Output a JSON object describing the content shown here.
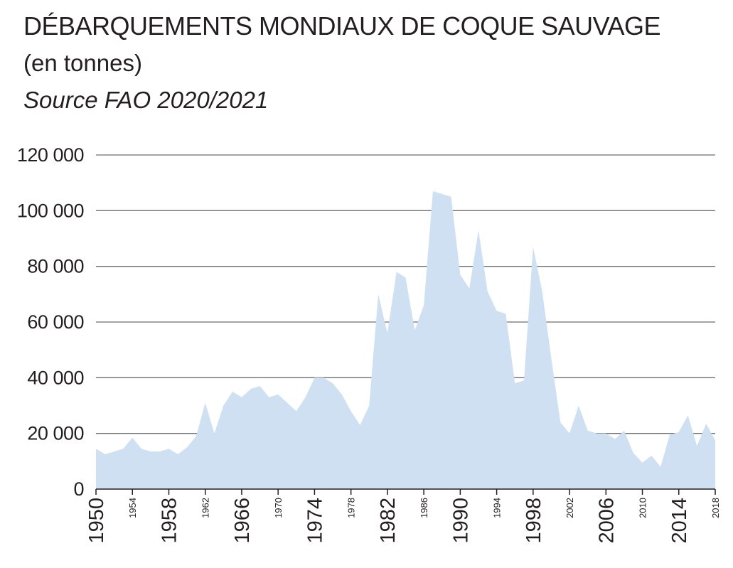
{
  "header": {
    "title": "DÉBARQUEMENTS MONDIAUX DE COQUE SAUVAGE",
    "subtitle": "(en tonnes)",
    "source": "Source FAO 2020/2021"
  },
  "colors": {
    "area": "#cfe0f2",
    "grid": "#6d6e71",
    "axis": "#231f20",
    "text": "#231f20"
  },
  "chart_data": {
    "type": "area",
    "title": "DÉBARQUEMENTS MONDIAUX DE COQUE SAUVAGE",
    "subtitle": "(en tonnes)",
    "xlabel": "",
    "ylabel": "",
    "ylim": [
      0,
      120000
    ],
    "xlim": [
      1950,
      2018
    ],
    "grid": "horizontal",
    "y_ticks": [
      0,
      20000,
      40000,
      60000,
      80000,
      100000,
      120000
    ],
    "y_tick_labels": [
      "0",
      "20 000",
      "40 000",
      "60 000",
      "80 000",
      "100 000",
      "120 000"
    ],
    "x_ticks_major": [
      1950,
      1958,
      1966,
      1974,
      1982,
      1990,
      1998,
      2006,
      2014
    ],
    "x_ticks_minor": [
      1954,
      1962,
      1970,
      1978,
      1986,
      1994,
      2002,
      2010,
      2018
    ],
    "x": [
      1950,
      1951,
      1952,
      1953,
      1954,
      1955,
      1956,
      1957,
      1958,
      1959,
      1960,
      1961,
      1962,
      1963,
      1964,
      1965,
      1966,
      1967,
      1968,
      1969,
      1970,
      1971,
      1972,
      1973,
      1974,
      1975,
      1976,
      1977,
      1978,
      1979,
      1980,
      1981,
      1982,
      1983,
      1984,
      1985,
      1986,
      1987,
      1988,
      1989,
      1990,
      1991,
      1992,
      1993,
      1994,
      1995,
      1996,
      1997,
      1998,
      1999,
      2000,
      2001,
      2002,
      2003,
      2004,
      2005,
      2006,
      2007,
      2008,
      2009,
      2010,
      2011,
      2012,
      2013,
      2014,
      2015,
      2016,
      2017,
      2018
    ],
    "values": [
      14500,
      12500,
      13500,
      14500,
      18500,
      14500,
      13500,
      13500,
      14500,
      12500,
      15000,
      19000,
      31000,
      20000,
      30000,
      35000,
      33000,
      36000,
      37000,
      33000,
      34000,
      31000,
      28000,
      33000,
      40000,
      40000,
      38000,
      34000,
      28000,
      23000,
      30000,
      70000,
      56000,
      78000,
      76000,
      57000,
      66000,
      107000,
      106000,
      105000,
      77000,
      72000,
      93000,
      71000,
      64000,
      63000,
      38000,
      39000,
      87000,
      71000,
      47000,
      24000,
      20000,
      30000,
      21000,
      20000,
      20000,
      18000,
      21000,
      13000,
      9500,
      12000,
      8000,
      19500,
      20500,
      26500,
      15500,
      23500,
      17500
    ]
  }
}
